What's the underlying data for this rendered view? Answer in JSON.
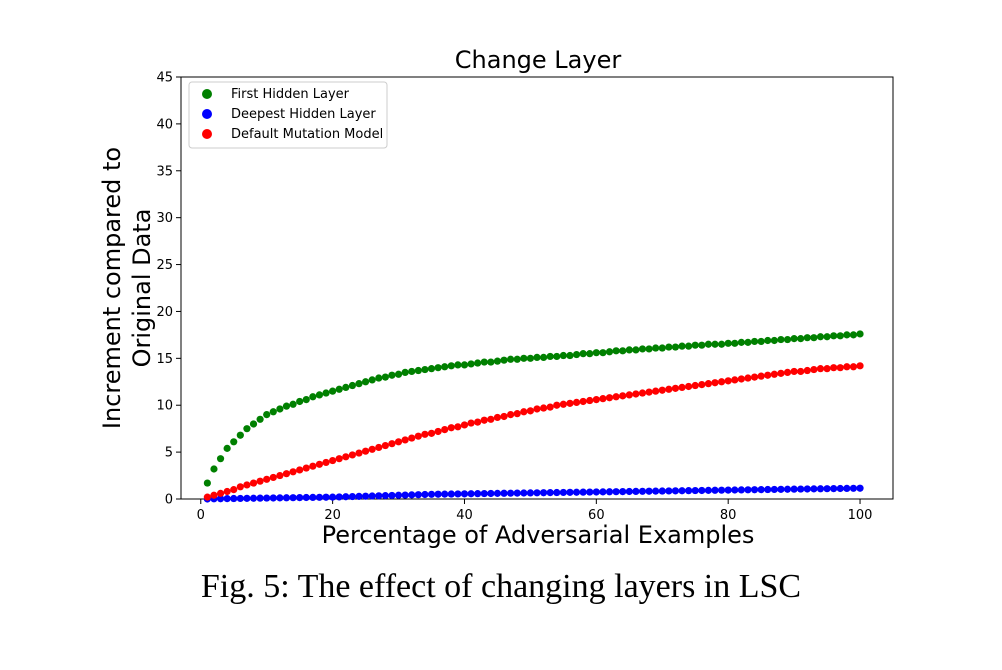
{
  "caption": "Fig. 5: The effect of changing layers in LSC",
  "chart_data": {
    "type": "scatter",
    "title": "Change Layer",
    "xlabel": "Percentage of Adversarial Examples",
    "ylabel_lines": [
      "Increment compared to",
      "Original Data"
    ],
    "xlim": [
      -3,
      105
    ],
    "ylim": [
      0,
      45
    ],
    "xticks": [
      0,
      20,
      40,
      60,
      80,
      100
    ],
    "yticks": [
      0,
      5,
      10,
      15,
      20,
      25,
      30,
      35,
      40,
      45
    ],
    "legend_position": "top-left",
    "grid": false,
    "series": [
      {
        "name": "First Hidden Layer",
        "color": "#008000",
        "x": [
          1,
          2,
          3,
          4,
          5,
          6,
          7,
          8,
          9,
          10,
          11,
          12,
          13,
          14,
          15,
          16,
          17,
          18,
          19,
          20,
          21,
          22,
          23,
          24,
          25,
          26,
          27,
          28,
          29,
          30,
          31,
          32,
          33,
          34,
          35,
          36,
          37,
          38,
          39,
          40,
          41,
          42,
          43,
          44,
          45,
          46,
          47,
          48,
          49,
          50,
          51,
          52,
          53,
          54,
          55,
          56,
          57,
          58,
          59,
          60,
          61,
          62,
          63,
          64,
          65,
          66,
          67,
          68,
          69,
          70,
          71,
          72,
          73,
          74,
          75,
          76,
          77,
          78,
          79,
          80,
          81,
          82,
          83,
          84,
          85,
          86,
          87,
          88,
          89,
          90,
          91,
          92,
          93,
          94,
          95,
          96,
          97,
          98,
          99,
          100
        ],
        "y": [
          1.7,
          3.2,
          4.3,
          5.4,
          6.1,
          6.8,
          7.5,
          8.0,
          8.5,
          9.0,
          9.3,
          9.6,
          9.9,
          10.1,
          10.4,
          10.6,
          10.9,
          11.1,
          11.3,
          11.5,
          11.7,
          11.9,
          12.1,
          12.3,
          12.5,
          12.7,
          12.9,
          13.0,
          13.2,
          13.3,
          13.5,
          13.6,
          13.7,
          13.8,
          13.9,
          14.0,
          14.1,
          14.2,
          14.3,
          14.3,
          14.4,
          14.5,
          14.6,
          14.6,
          14.7,
          14.8,
          14.9,
          14.9,
          15.0,
          15.0,
          15.1,
          15.1,
          15.2,
          15.2,
          15.3,
          15.3,
          15.4,
          15.5,
          15.5,
          15.6,
          15.6,
          15.7,
          15.8,
          15.8,
          15.9,
          15.9,
          16.0,
          16.0,
          16.1,
          16.1,
          16.2,
          16.2,
          16.3,
          16.3,
          16.4,
          16.4,
          16.5,
          16.5,
          16.5,
          16.6,
          16.6,
          16.7,
          16.7,
          16.8,
          16.8,
          16.9,
          16.9,
          17.0,
          17.0,
          17.1,
          17.1,
          17.2,
          17.2,
          17.3,
          17.3,
          17.4,
          17.4,
          17.5,
          17.5,
          17.6
        ]
      },
      {
        "name": "Deepest Hidden Layer",
        "color": "#0000ff",
        "x": [
          1,
          2,
          3,
          4,
          5,
          6,
          7,
          8,
          9,
          10,
          11,
          12,
          13,
          14,
          15,
          16,
          17,
          18,
          19,
          20,
          21,
          22,
          23,
          24,
          25,
          26,
          27,
          28,
          29,
          30,
          31,
          32,
          33,
          34,
          35,
          36,
          37,
          38,
          39,
          40,
          41,
          42,
          43,
          44,
          45,
          46,
          47,
          48,
          49,
          50,
          51,
          52,
          53,
          54,
          55,
          56,
          57,
          58,
          59,
          60,
          61,
          62,
          63,
          64,
          65,
          66,
          67,
          68,
          69,
          70,
          71,
          72,
          73,
          74,
          75,
          76,
          77,
          78,
          79,
          80,
          81,
          82,
          83,
          84,
          85,
          86,
          87,
          88,
          89,
          90,
          91,
          92,
          93,
          94,
          95,
          96,
          97,
          98,
          99,
          100
        ],
        "y": [
          0.0,
          0.02,
          0.03,
          0.04,
          0.05,
          0.06,
          0.07,
          0.08,
          0.09,
          0.1,
          0.11,
          0.12,
          0.13,
          0.14,
          0.15,
          0.16,
          0.17,
          0.18,
          0.19,
          0.2,
          0.22,
          0.24,
          0.26,
          0.28,
          0.3,
          0.32,
          0.34,
          0.36,
          0.38,
          0.4,
          0.42,
          0.44,
          0.46,
          0.48,
          0.5,
          0.51,
          0.52,
          0.53,
          0.54,
          0.55,
          0.56,
          0.57,
          0.58,
          0.59,
          0.6,
          0.61,
          0.62,
          0.63,
          0.64,
          0.65,
          0.66,
          0.67,
          0.68,
          0.69,
          0.7,
          0.71,
          0.72,
          0.73,
          0.74,
          0.75,
          0.76,
          0.77,
          0.78,
          0.79,
          0.8,
          0.81,
          0.82,
          0.83,
          0.84,
          0.85,
          0.86,
          0.87,
          0.88,
          0.89,
          0.9,
          0.91,
          0.92,
          0.93,
          0.94,
          0.95,
          0.96,
          0.97,
          0.98,
          0.99,
          1.0,
          1.01,
          1.02,
          1.03,
          1.04,
          1.05,
          1.06,
          1.07,
          1.08,
          1.09,
          1.1,
          1.11,
          1.12,
          1.13,
          1.14,
          1.15
        ]
      },
      {
        "name": "Default Mutation Model",
        "color": "#ff0000",
        "x": [
          1,
          2,
          3,
          4,
          5,
          6,
          7,
          8,
          9,
          10,
          11,
          12,
          13,
          14,
          15,
          16,
          17,
          18,
          19,
          20,
          21,
          22,
          23,
          24,
          25,
          26,
          27,
          28,
          29,
          30,
          31,
          32,
          33,
          34,
          35,
          36,
          37,
          38,
          39,
          40,
          41,
          42,
          43,
          44,
          45,
          46,
          47,
          48,
          49,
          50,
          51,
          52,
          53,
          54,
          55,
          56,
          57,
          58,
          59,
          60,
          61,
          62,
          63,
          64,
          65,
          66,
          67,
          68,
          69,
          70,
          71,
          72,
          73,
          74,
          75,
          76,
          77,
          78,
          79,
          80,
          81,
          82,
          83,
          84,
          85,
          86,
          87,
          88,
          89,
          90,
          91,
          92,
          93,
          94,
          95,
          96,
          97,
          98,
          99,
          100
        ],
        "y": [
          0.2,
          0.4,
          0.6,
          0.8,
          1.0,
          1.3,
          1.5,
          1.7,
          1.9,
          2.1,
          2.3,
          2.5,
          2.7,
          2.9,
          3.1,
          3.3,
          3.5,
          3.7,
          3.9,
          4.1,
          4.3,
          4.5,
          4.7,
          4.9,
          5.1,
          5.3,
          5.5,
          5.7,
          5.9,
          6.1,
          6.3,
          6.5,
          6.7,
          6.9,
          7.0,
          7.2,
          7.4,
          7.6,
          7.7,
          7.9,
          8.1,
          8.2,
          8.4,
          8.5,
          8.7,
          8.8,
          9.0,
          9.1,
          9.3,
          9.4,
          9.6,
          9.7,
          9.8,
          10.0,
          10.1,
          10.2,
          10.3,
          10.4,
          10.5,
          10.6,
          10.7,
          10.8,
          10.9,
          11.0,
          11.1,
          11.2,
          11.3,
          11.4,
          11.5,
          11.6,
          11.7,
          11.8,
          11.9,
          12.0,
          12.1,
          12.2,
          12.3,
          12.4,
          12.5,
          12.6,
          12.7,
          12.8,
          12.9,
          13.0,
          13.1,
          13.2,
          13.3,
          13.4,
          13.5,
          13.6,
          13.6,
          13.7,
          13.8,
          13.9,
          13.9,
          14.0,
          14.0,
          14.1,
          14.1,
          14.2
        ]
      }
    ]
  }
}
